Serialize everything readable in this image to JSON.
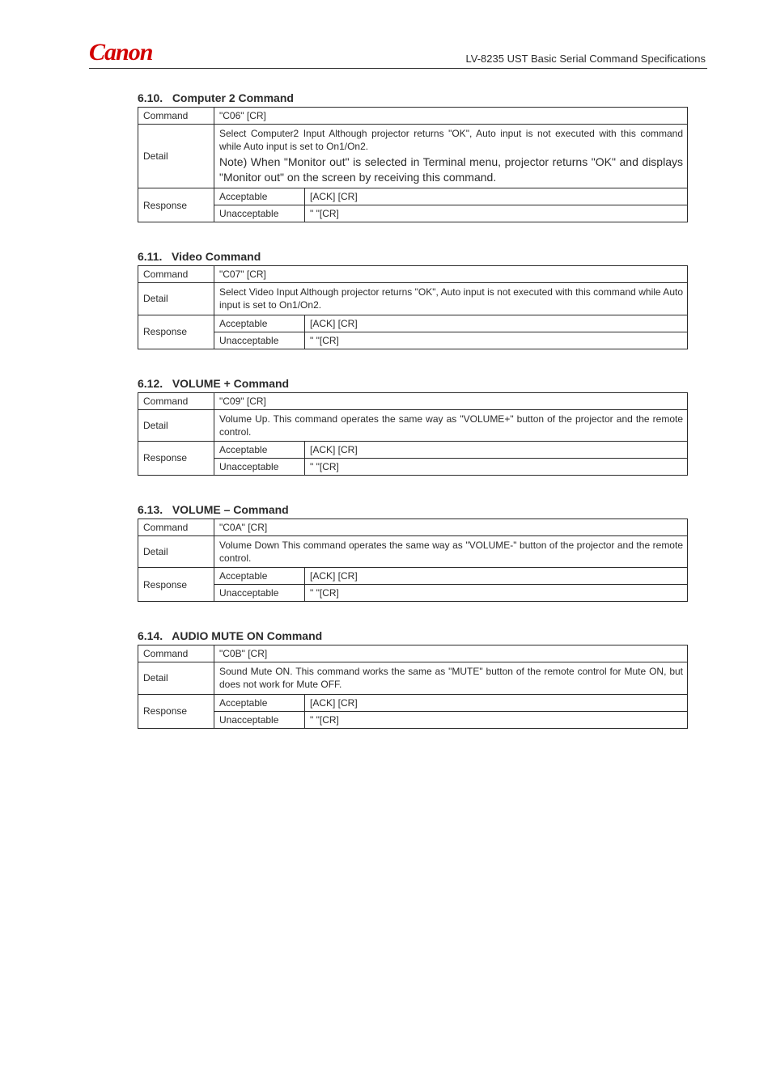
{
  "header": {
    "logo_text": "Canon",
    "doc_title": "LV-8235 UST    Basic Serial Command Specifications"
  },
  "typography": {
    "body_fontsize": 12,
    "heading_fontsize": 14,
    "logo_fontsize": 30,
    "doc_title_fontsize": 13,
    "note_fontsize": 14,
    "logo_color": "#d20000",
    "text_color": "#2b2b2b",
    "border_color": "#2b2b2b"
  },
  "labels": {
    "command": "Command",
    "detail": "Detail",
    "response": "Response",
    "acceptable": "Acceptable",
    "unacceptable": "Unacceptable"
  },
  "responses": {
    "ack": "[ACK] [CR]",
    "nak": "\"    \"[CR]"
  },
  "sections": [
    {
      "number": "6.10.",
      "title": "Computer 2 Command",
      "command": "\"C06\" [CR]",
      "detail_plain": "Select Computer2 Input\nAlthough projector returns \"OK\", Auto input is not executed with this command while Auto input is set to On1/On2.",
      "note": "Note) When \"Monitor out\" is selected in Terminal menu, projector returns \"OK\" and displays \"Monitor out\" on the screen by receiving this command."
    },
    {
      "number": "6.11.",
      "title": "Video Command",
      "command": "\"C07\" [CR]",
      "detail_plain": "Select Video Input\nAlthough projector returns \"OK\", Auto input is not executed with this command while Auto input is set to On1/On2."
    },
    {
      "number": "6.12.",
      "title": "VOLUME + Command",
      "command": "\"C09\" [CR]",
      "detail_plain": "Volume Up.\nThis command operates the same way as \"VOLUME+\" button of the projector and the remote control."
    },
    {
      "number": "6.13.",
      "title": "VOLUME – Command",
      "command": "\"C0A\" [CR]",
      "detail_plain": "Volume Down\nThis command operates the same way as \"VOLUME-\" button of the projector and the remote control."
    },
    {
      "number": "6.14.",
      "title": "AUDIO MUTE ON Command",
      "command": "\"C0B\" [CR]",
      "detail_plain": "Sound Mute ON.\nThis command works the same as \"MUTE\" button of the remote control for Mute ON, but does not work for Mute OFF."
    }
  ]
}
